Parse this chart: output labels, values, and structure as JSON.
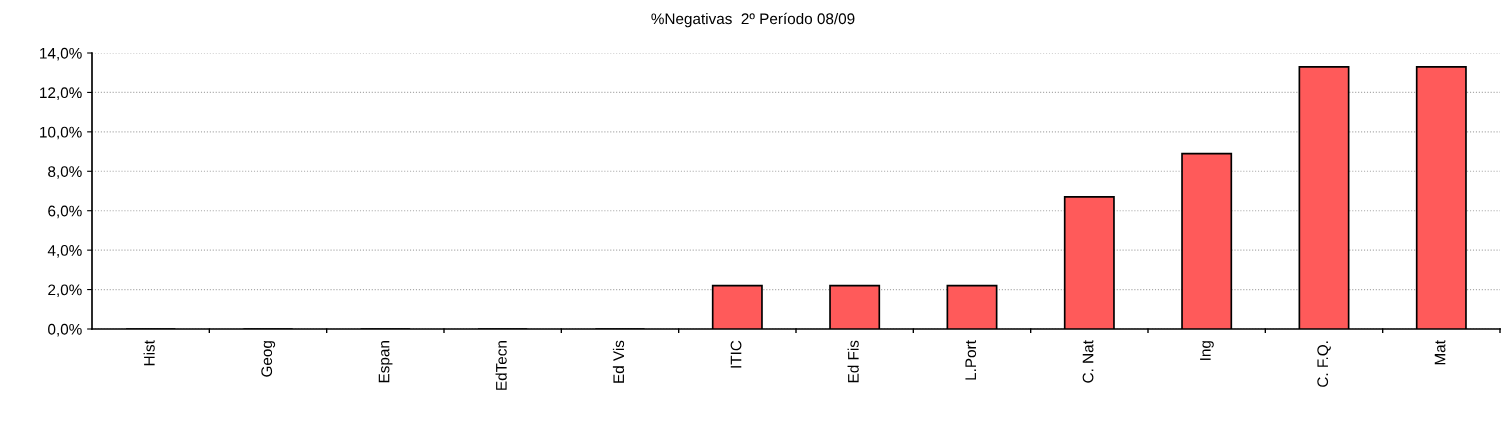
{
  "chart_data": {
    "type": "bar",
    "title": "%Negativas  2º Período 08/09",
    "categories": [
      "Hist",
      "Geog",
      "Espan",
      "EdTecn",
      "Ed Vis",
      "ITIC",
      "Ed Fis",
      "L.Port",
      "C. Nat",
      "Ing",
      "C. F.Q.",
      "Mat"
    ],
    "values": [
      0,
      0,
      0,
      0,
      0,
      2.2,
      2.2,
      2.2,
      6.7,
      8.9,
      13.3,
      13.3
    ],
    "color": "#ff5a5a",
    "ylim": [
      0,
      14
    ],
    "yticks": [
      {
        "value": 0,
        "label": "0,0%"
      },
      {
        "value": 2,
        "label": "2,0%"
      },
      {
        "value": 4,
        "label": "4,0%"
      },
      {
        "value": 6,
        "label": "6,0%"
      },
      {
        "value": 8,
        "label": "8,0%"
      },
      {
        "value": 10,
        "label": "10,0%"
      },
      {
        "value": 12,
        "label": "12,0%"
      },
      {
        "value": 14,
        "label": "14,0%"
      }
    ],
    "grid": "y",
    "legend": false
  }
}
